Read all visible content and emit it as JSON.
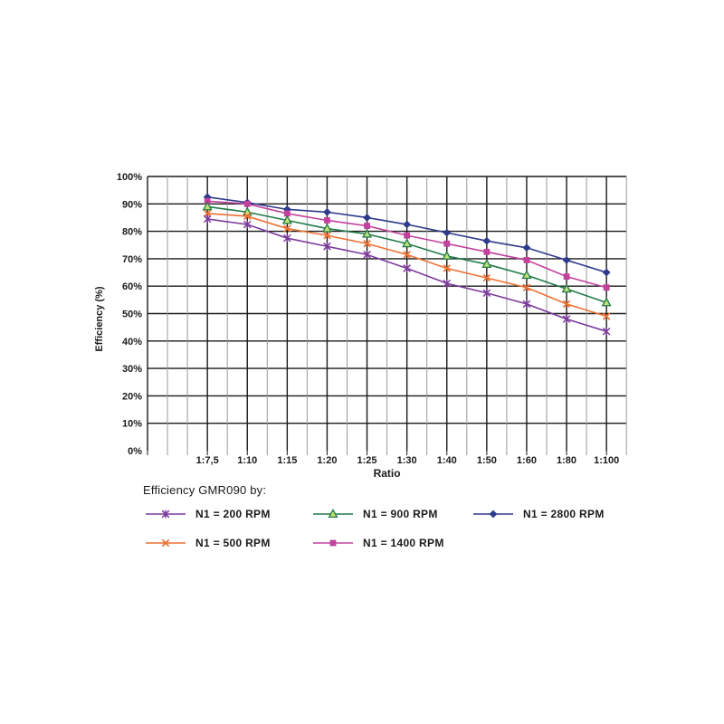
{
  "page": {
    "background": "#ffffff"
  },
  "legend": {
    "title": "Efficiency GMR090 by:"
  },
  "chart_data": {
    "type": "line",
    "title": "Efficiency GMR090 by:",
    "xlabel": "Ratio",
    "ylabel": "Efficiency (%)",
    "categories": [
      "1:7,5",
      "1:10",
      "1:15",
      "1:20",
      "1:25",
      "1:30",
      "1:40",
      "1:50",
      "1:60",
      "1:80",
      "1:100"
    ],
    "y_tick_labels": [
      "0%",
      "10%",
      "20%",
      "30%",
      "40%",
      "50%",
      "60%",
      "70%",
      "80%",
      "90%",
      "100%"
    ],
    "ylim": [
      0,
      100
    ],
    "grid": true,
    "legend_position": "bottom",
    "series": [
      {
        "name": "N1 = 200 RPM",
        "marker": "star",
        "color": "#7c3a9d",
        "values": [
          84.5,
          82.5,
          77.5,
          74.5,
          71.5,
          66.5,
          61,
          57.5,
          53.5,
          48,
          43.5
        ]
      },
      {
        "name": "N1 = 500 RPM",
        "marker": "x",
        "color": "#ed7132",
        "values": [
          86.5,
          85.5,
          81,
          78.5,
          75.5,
          71.5,
          66.5,
          63,
          59.5,
          53.5,
          49
        ]
      },
      {
        "name": "N1 = 900 RPM",
        "marker": "triangle",
        "color": "#1f7a48",
        "marker_fill": "#c4e06f",
        "values": [
          89,
          87,
          84,
          81,
          79,
          75.5,
          71,
          68,
          64,
          59,
          54
        ]
      },
      {
        "name": "N1 = 1400 RPM",
        "marker": "square",
        "color": "#c2419e",
        "values": [
          91,
          90,
          86.5,
          84,
          82,
          78.5,
          75.5,
          72.5,
          69.5,
          63.5,
          59.5
        ]
      },
      {
        "name": "N1 = 2800 RPM",
        "marker": "diamond",
        "color": "#2e3a8c",
        "values": [
          92.5,
          90.5,
          88,
          87,
          85,
          82.5,
          79.5,
          76.5,
          74,
          69.5,
          65
        ]
      }
    ],
    "colors": {
      "grid_major": "#1a1a1a",
      "grid_minor": "#999999",
      "text": "#1a1a1a"
    }
  }
}
